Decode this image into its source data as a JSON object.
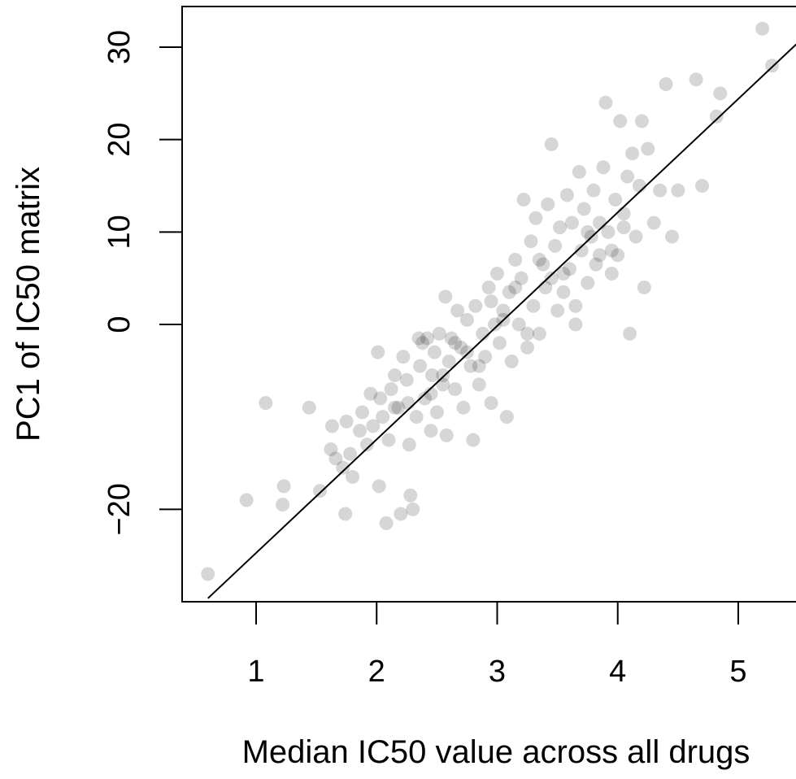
{
  "chart_data": {
    "type": "scatter",
    "xlabel": "Median IC50 value across all drugs",
    "ylabel": "PC1 of IC50 matrix",
    "xlim": [
      0.6,
      5.5
    ],
    "ylim": [
      -30,
      35
    ],
    "x_ticks": [
      1,
      2,
      3,
      4,
      5
    ],
    "y_ticks": [
      -20,
      0,
      10,
      20,
      30
    ],
    "grid": false,
    "point_color": "rgba(0,0,0,0.16)",
    "fit_line": {
      "slope": 12.28,
      "intercept": -37.0
    },
    "series": [
      {
        "x": [
          0.6,
          0.92,
          1.08,
          1.22,
          1.23,
          1.44,
          1.53,
          1.62,
          1.63,
          1.66,
          1.72,
          1.74,
          1.75,
          1.78,
          1.8,
          1.86,
          1.88,
          1.92,
          1.95,
          1.97,
          2.01,
          2.02,
          2.03,
          2.05,
          2.08,
          2.1,
          2.12,
          2.15,
          2.18,
          2.2,
          2.22,
          2.26,
          2.27,
          2.28,
          2.3,
          2.33,
          2.36,
          2.38,
          2.4,
          2.42,
          2.45,
          2.46,
          2.48,
          2.5,
          2.52,
          2.55,
          2.57,
          2.58,
          2.6,
          2.62,
          2.65,
          2.67,
          2.7,
          2.72,
          2.75,
          2.78,
          2.8,
          2.82,
          2.85,
          2.88,
          2.9,
          2.93,
          2.95,
          2.98,
          3.0,
          3.02,
          3.05,
          3.08,
          3.1,
          3.12,
          3.15,
          3.18,
          3.2,
          3.22,
          3.25,
          3.28,
          3.3,
          3.32,
          3.35,
          3.38,
          3.4,
          3.42,
          3.45,
          3.48,
          3.5,
          3.52,
          3.55,
          3.58,
          3.6,
          3.62,
          3.65,
          3.68,
          3.7,
          3.72,
          3.75,
          3.78,
          3.8,
          3.82,
          3.85,
          3.88,
          3.9,
          3.92,
          3.95,
          3.98,
          4.0,
          4.02,
          4.05,
          4.08,
          4.1,
          4.12,
          4.15,
          4.18,
          4.2,
          4.22,
          4.25,
          4.3,
          4.35,
          4.4,
          4.45,
          4.5,
          4.65,
          4.7,
          4.82,
          4.85,
          5.2,
          5.28,
          2.35,
          2.55,
          2.75,
          2.95,
          3.05,
          3.25,
          3.45,
          3.65,
          3.85,
          4.05,
          2.45,
          2.65,
          2.85,
          3.15,
          3.35,
          3.55,
          3.75,
          3.95,
          2.25,
          2.15
        ],
        "y": [
          -27.0,
          -19.0,
          -8.5,
          -19.5,
          -17.5,
          -9.0,
          -18.0,
          -13.5,
          -11.0,
          -14.5,
          -15.5,
          -20.5,
          -10.5,
          -14.0,
          -16.5,
          -11.5,
          -9.5,
          -13.0,
          -7.5,
          -11.0,
          -3.0,
          -17.5,
          -8.0,
          -10.0,
          -21.5,
          -12.5,
          -7.0,
          -5.5,
          -9.0,
          -20.5,
          -3.5,
          -8.5,
          -13.0,
          -18.5,
          -20.0,
          -10.0,
          -4.5,
          -2.0,
          -8.0,
          -1.5,
          -11.5,
          -5.5,
          -3.0,
          -9.5,
          -1.0,
          -6.5,
          3.0,
          -12.0,
          -4.0,
          -1.5,
          -7.0,
          1.5,
          -2.5,
          -9.0,
          0.5,
          -4.5,
          -12.5,
          2.0,
          -6.5,
          -1.0,
          -3.5,
          4.0,
          -8.5,
          0.0,
          5.5,
          -2.0,
          1.5,
          -10.0,
          3.5,
          -4.0,
          7.0,
          0.0,
          5.0,
          13.5,
          -2.5,
          9.0,
          2.0,
          11.5,
          -1.0,
          6.5,
          4.0,
          13.0,
          19.5,
          8.5,
          1.5,
          10.5,
          3.5,
          14.0,
          6.0,
          11.0,
          0.0,
          16.5,
          8.0,
          12.5,
          4.5,
          9.5,
          14.5,
          6.5,
          11.0,
          17.0,
          24.0,
          10.0,
          5.5,
          13.5,
          7.5,
          22.0,
          12.0,
          16.0,
          -1.0,
          18.5,
          9.5,
          15.0,
          22.0,
          4.0,
          19.0,
          11.0,
          14.5,
          26.0,
          9.5,
          14.5,
          26.5,
          15.0,
          22.5,
          25.0,
          32.0,
          28.0,
          -1.5,
          -5.5,
          -3.0,
          2.5,
          0.5,
          -1.0,
          5.0,
          2.0,
          7.5,
          10.5,
          -7.5,
          -2.0,
          -4.5,
          4.0,
          7.0,
          5.5,
          10.0,
          8.0,
          -6.0,
          -9.0
        ]
      }
    ]
  }
}
